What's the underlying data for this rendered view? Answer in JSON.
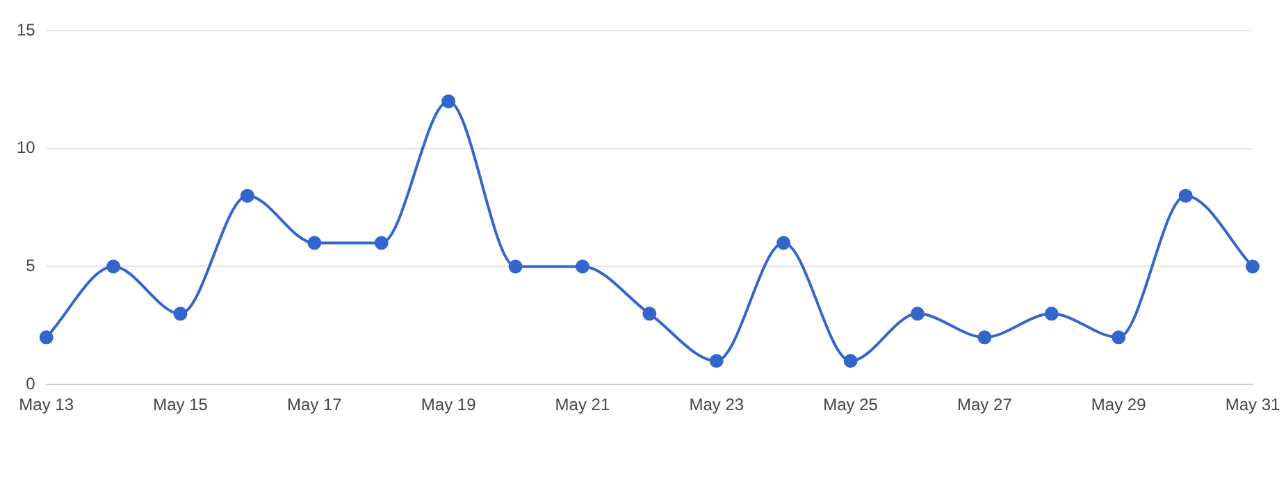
{
  "chart_data": {
    "type": "line",
    "categories": [
      "May 13",
      null,
      "May 15",
      null,
      "May 17",
      null,
      "May 19",
      null,
      "May 21",
      null,
      "May 23",
      null,
      "May 25",
      null,
      "May 27",
      null,
      "May 29",
      null,
      "May 31"
    ],
    "series": [
      {
        "color": "#3366cc",
        "values": [
          2,
          5,
          3,
          8,
          6,
          6,
          12,
          5,
          5,
          3,
          1,
          6,
          1,
          3,
          2,
          3,
          2,
          8,
          5
        ]
      }
    ],
    "ylim": [
      0,
      15
    ],
    "yticks": [
      0,
      5,
      10,
      15
    ],
    "grid": "y",
    "legend": false,
    "marker": "circle",
    "line_style": "solid"
  }
}
